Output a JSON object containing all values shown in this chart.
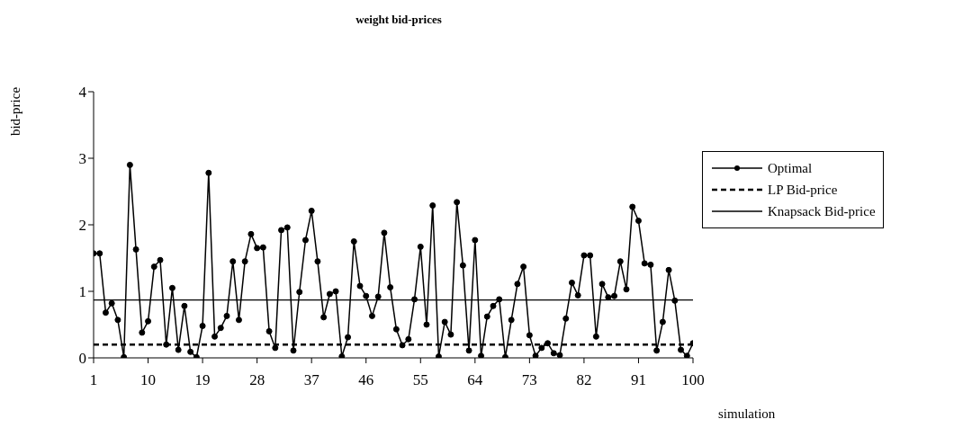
{
  "chart_data": {
    "type": "line",
    "title": "weight bid-prices",
    "xlabel": "simulation",
    "ylabel": "bid-price",
    "x": [
      1,
      2,
      3,
      4,
      5,
      6,
      7,
      8,
      9,
      10,
      11,
      12,
      13,
      14,
      15,
      16,
      17,
      18,
      19,
      20,
      21,
      22,
      23,
      24,
      25,
      26,
      27,
      28,
      29,
      30,
      31,
      32,
      33,
      34,
      35,
      36,
      37,
      38,
      39,
      40,
      41,
      42,
      43,
      44,
      45,
      46,
      47,
      48,
      49,
      50,
      51,
      52,
      53,
      54,
      55,
      56,
      57,
      58,
      59,
      60,
      61,
      62,
      63,
      64,
      65,
      66,
      67,
      68,
      69,
      70,
      71,
      72,
      73,
      74,
      75,
      76,
      77,
      78,
      79,
      80,
      81,
      82,
      83,
      84,
      85,
      86,
      87,
      88,
      89,
      90,
      91,
      92,
      93,
      94,
      95,
      96,
      97,
      98,
      99,
      100
    ],
    "series": [
      {
        "name": "Optimal",
        "color": "#000000",
        "values": [
          1.57,
          1.57,
          0.68,
          0.82,
          0.57,
          0.01,
          2.9,
          1.63,
          0.38,
          0.55,
          1.37,
          1.47,
          0.2,
          1.05,
          0.12,
          0.78,
          0.09,
          0.01,
          0.48,
          2.78,
          0.32,
          0.45,
          0.63,
          1.45,
          0.57,
          1.45,
          1.86,
          1.65,
          1.66,
          0.4,
          0.15,
          1.92,
          1.96,
          0.11,
          0.99,
          1.77,
          2.21,
          1.45,
          0.61,
          0.96,
          1.0,
          0.02,
          0.31,
          1.75,
          1.08,
          0.93,
          0.63,
          0.92,
          1.88,
          1.06,
          0.43,
          0.19,
          0.28,
          0.88,
          1.67,
          0.5,
          2.29,
          0.02,
          0.54,
          0.35,
          2.34,
          1.39,
          0.11,
          1.77,
          0.03,
          0.62,
          0.78,
          0.88,
          0.01,
          0.57,
          1.11,
          1.37,
          0.34,
          0.03,
          0.15,
          0.22,
          0.07,
          0.04,
          0.59,
          1.13,
          0.94,
          1.54,
          1.54,
          0.32,
          1.11,
          0.91,
          0.93,
          1.45,
          1.03,
          2.27,
          2.06,
          1.42,
          1.4,
          0.11,
          0.54,
          1.32,
          0.86,
          0.12,
          0.03,
          0.22
        ]
      }
    ],
    "ref_lines": [
      {
        "axis": "y",
        "value": 0.2,
        "label": "LP Bid-price",
        "color": "#000000",
        "line_style": "dashed"
      },
      {
        "axis": "y",
        "value": 0.87,
        "label": "Knapsack Bid-price",
        "color": "#000000",
        "line_style": "solid"
      }
    ],
    "xlim": [
      1,
      100
    ],
    "xticks": [
      1,
      10,
      19,
      28,
      37,
      46,
      55,
      64,
      73,
      82,
      91,
      100
    ],
    "ylim": [
      0,
      4
    ],
    "yticks": [
      0,
      1,
      2,
      3,
      4
    ],
    "grid": false,
    "legend": "right",
    "marker": "circle",
    "line_style": "solid"
  }
}
